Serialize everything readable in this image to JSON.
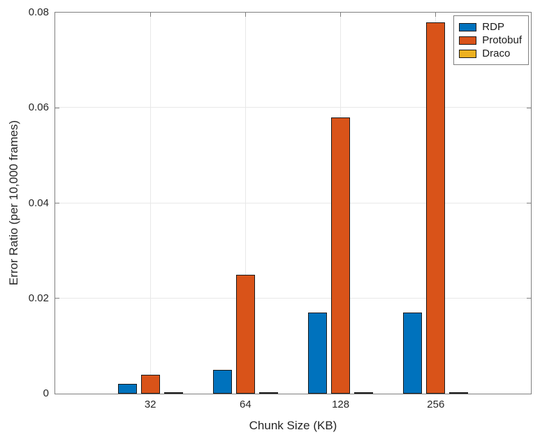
{
  "chart_data": {
    "type": "bar",
    "title": "",
    "categories": [
      "32",
      "64",
      "128",
      "256"
    ],
    "series": [
      {
        "name": "RDP",
        "color": "#0072BD",
        "values": [
          0.002,
          0.005,
          0.017,
          0.017
        ]
      },
      {
        "name": "Protobuf",
        "color": "#D95319",
        "values": [
          0.004,
          0.025,
          0.058,
          0.078
        ]
      },
      {
        "name": "Draco",
        "color": "#EDB120",
        "values": [
          0.0001,
          0.0001,
          0.0001,
          0.0001
        ]
      }
    ],
    "xlabel": "Chunk Size (KB)",
    "ylabel": "Error Ratio (per 10,000 frames)",
    "ylim": [
      0,
      0.08
    ],
    "yticks": [
      0,
      0.02,
      0.04,
      0.06,
      0.08
    ],
    "ytick_labels": [
      "0",
      "0.02",
      "0.04",
      "0.06",
      "0.08"
    ],
    "grid": true,
    "legend_position": "top-right",
    "colors": {
      "axis": "#7f7f7f",
      "grid": "#e8e8e8",
      "text": "#262626",
      "bar_edge": "#1a1a1a"
    }
  }
}
